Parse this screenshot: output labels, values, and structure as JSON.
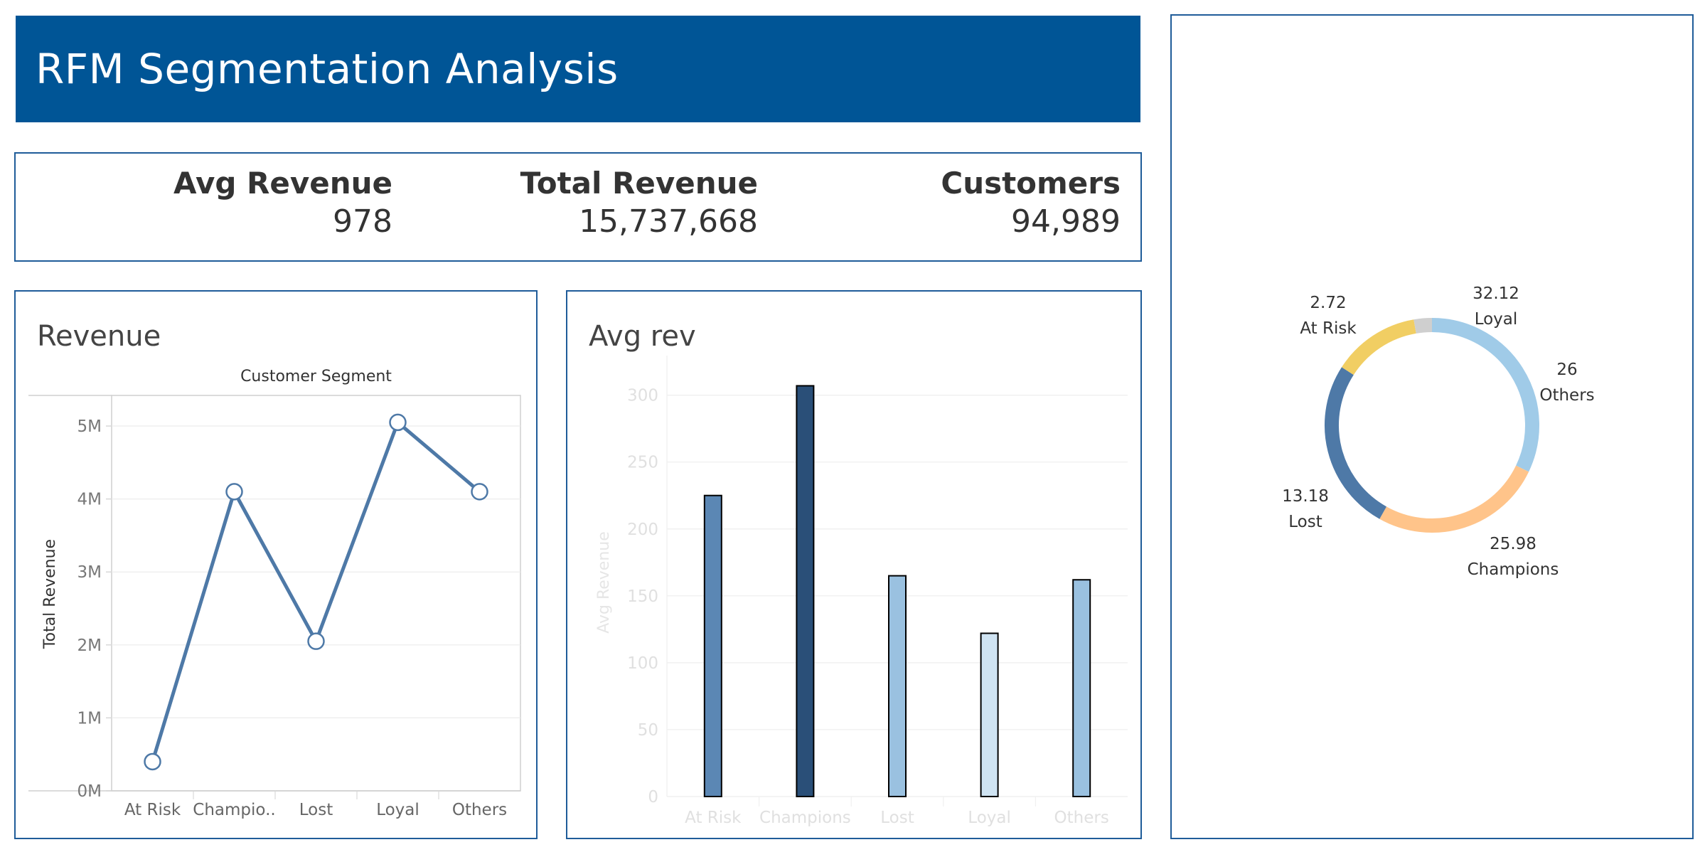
{
  "header": {
    "title": "RFM Segmentation Analysis"
  },
  "kpis": [
    {
      "label": "Avg Revenue",
      "value": "978"
    },
    {
      "label": "Total Revenue",
      "value": "15,737,668"
    },
    {
      "label": "Customers",
      "value": "94,989"
    }
  ],
  "revenue_panel": {
    "title": "Revenue"
  },
  "avg_panel": {
    "title": "Avg rev"
  },
  "chart_data": [
    {
      "type": "line",
      "title": "Revenue",
      "xlabel": "Customer Segment",
      "ylabel": "Total Revenue",
      "categories": [
        "At Risk",
        "Champio..",
        "Lost",
        "Loyal",
        "Others"
      ],
      "values": [
        400000,
        4100000,
        2050000,
        5050000,
        4100000
      ],
      "ylim": [
        0,
        5400000
      ],
      "yticks": [
        {
          "v": 0,
          "label": "0M"
        },
        {
          "v": 1000000,
          "label": "1M"
        },
        {
          "v": 2000000,
          "label": "2M"
        },
        {
          "v": 3000000,
          "label": "3M"
        },
        {
          "v": 4000000,
          "label": "4M"
        },
        {
          "v": 5000000,
          "label": "5M"
        }
      ],
      "color": "#4e79a7"
    },
    {
      "type": "bar",
      "title": "Avg rev",
      "xlabel": "",
      "ylabel": "Avg Revenue",
      "categories": [
        "At Risk",
        "Champions",
        "Lost",
        "Loyal",
        "Others"
      ],
      "values": [
        225,
        307,
        165,
        122,
        162
      ],
      "ylim": [
        0,
        320
      ],
      "yticks": [
        0,
        50,
        100,
        150,
        200,
        250,
        300
      ],
      "colors": [
        "#5b87b4",
        "#2a4f78",
        "#9ac1e0",
        "#cfe3f2",
        "#9ac1e0"
      ]
    },
    {
      "type": "pie",
      "title": "",
      "slices": [
        {
          "name": "Loyal",
          "value": 32.12,
          "label": "32.12",
          "color": "#a0cbe8"
        },
        {
          "name": "Others",
          "value": 26,
          "label": "26",
          "color": "#ffc48a"
        },
        {
          "name": "Champions",
          "value": 25.98,
          "label": "25.98",
          "color": "#4e79a7"
        },
        {
          "name": "Lost",
          "value": 13.18,
          "label": "13.18",
          "color": "#f1ce63"
        },
        {
          "name": "At Risk",
          "value": 2.72,
          "label": "2.72",
          "color": "#cfcfcf"
        }
      ]
    }
  ]
}
